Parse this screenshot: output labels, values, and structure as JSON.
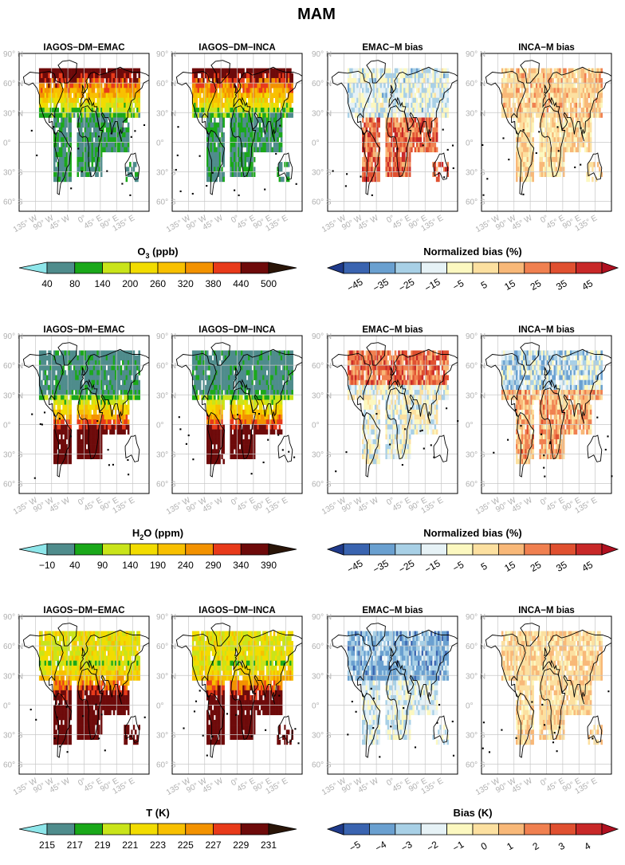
{
  "figure": {
    "title": "MAM",
    "panel_titles": [
      "IAGOS−DM−EMAC",
      "IAGOS−DM−INCA",
      "EMAC−M bias",
      "INCA−M bias"
    ],
    "lat_ticks": [
      "90° N",
      "60° N",
      "30° N",
      "0°",
      "30° S",
      "60° S"
    ],
    "lon_ticks": [
      "135° W",
      "90° W",
      "45° W",
      "0°",
      "45° E",
      "90° E",
      "135° E"
    ]
  },
  "colors": {
    "abs_low_extension": "#8ee6ea",
    "abs_bins": [
      "#4f8c8c",
      "#1aa81a",
      "#c9e41a",
      "#f2dc00",
      "#f8c000",
      "#f39200",
      "#e83a1a",
      "#6e0a0a"
    ],
    "abs_high_extension": "#2a1508",
    "div_low_extension": "#1f3a8a",
    "div_bins": [
      "#3a64b0",
      "#6aa0d0",
      "#a8d0e6",
      "#e6f2f6",
      "#fcf8c0",
      "#fce0a0",
      "#f8b878",
      "#f08050",
      "#e05030",
      "#c82828"
    ],
    "div_high_extension": "#b01020",
    "land_outline": "#000000",
    "grid": "#c8c8c8"
  },
  "chart_data": [
    {
      "type": "heatmap",
      "row": 1,
      "variable": "O3",
      "panels": [
        "IAGOS−DM−EMAC",
        "IAGOS−DM−INCA",
        "EMAC−M bias",
        "INCA−M bias"
      ],
      "absolute_colorbar": {
        "title": "O3 (ppb)",
        "title_main": "O",
        "title_sub": "3",
        "title_rest": " (ppb)",
        "ticks": [
          "40",
          "80",
          "140",
          "200",
          "260",
          "320",
          "380",
          "440",
          "500"
        ],
        "extend": "both"
      },
      "bias_colorbar": {
        "title": "Normalized bias (%)",
        "ticks": [
          "−45",
          "−35",
          "−25",
          "−15",
          "−5",
          "5",
          "15",
          "25",
          "35",
          "45"
        ],
        "extend": "both"
      }
    },
    {
      "type": "heatmap",
      "row": 2,
      "variable": "H2O",
      "panels": [
        "IAGOS−DM−EMAC",
        "IAGOS−DM−INCA",
        "EMAC−M bias",
        "INCA−M bias"
      ],
      "absolute_colorbar": {
        "title": "H2O (ppm)",
        "title_main": "H",
        "title_sub": "2",
        "title_rest": "O (ppm)",
        "ticks": [
          "−10",
          "40",
          "90",
          "140",
          "190",
          "240",
          "290",
          "340",
          "390"
        ],
        "extend": "both"
      },
      "bias_colorbar": {
        "title": "Normalized bias (%)",
        "ticks": [
          "−45",
          "−35",
          "−25",
          "−15",
          "−5",
          "5",
          "15",
          "25",
          "35",
          "45"
        ],
        "extend": "both"
      }
    },
    {
      "type": "heatmap",
      "row": 3,
      "variable": "T",
      "panels": [
        "IAGOS−DM−EMAC",
        "IAGOS−DM−INCA",
        "EMAC−M bias",
        "INCA−M bias"
      ],
      "absolute_colorbar": {
        "title": "T (K)",
        "title_main": "T (K)",
        "title_sub": "",
        "title_rest": "",
        "ticks": [
          "215",
          "217",
          "219",
          "221",
          "223",
          "225",
          "227",
          "229",
          "231"
        ],
        "extend": "both"
      },
      "bias_colorbar": {
        "title": "Bias (K)",
        "ticks": [
          "−5",
          "−4",
          "−3",
          "−2",
          "−1",
          "0",
          "1",
          "2",
          "3",
          "4"
        ],
        "extend": "both"
      }
    }
  ]
}
